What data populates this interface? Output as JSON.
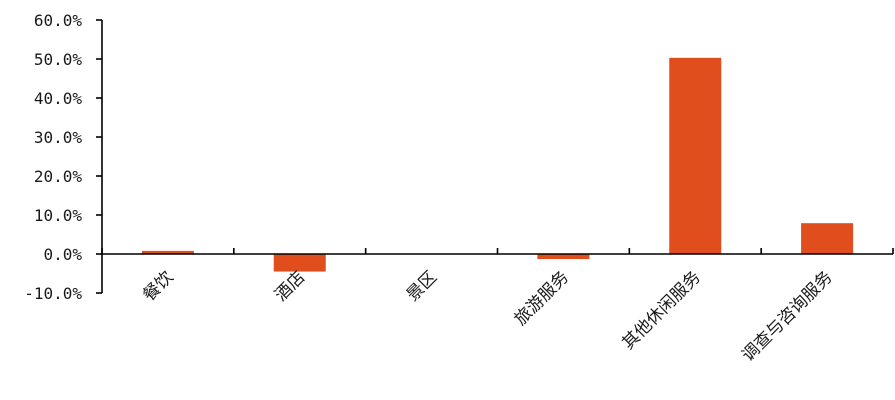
{
  "chart_data": {
    "type": "bar",
    "categories": [
      "餐饮",
      "酒店",
      "景区",
      "旅游服务",
      "其他休闲服务",
      "调查与咨询服务"
    ],
    "values": [
      0.8,
      -4.5,
      0.0,
      -1.3,
      50.3,
      7.9
    ],
    "ylim": [
      -10,
      60
    ],
    "yticks": [
      -10,
      0,
      10,
      20,
      30,
      40,
      50,
      60
    ],
    "ytick_labels": [
      "-10.0%",
      "0.0%",
      "10.0%",
      "20.0%",
      "30.0%",
      "40.0%",
      "50.0%",
      "60.0%"
    ],
    "bar_color": "#E04E1E",
    "grid": false,
    "legend": "none"
  }
}
